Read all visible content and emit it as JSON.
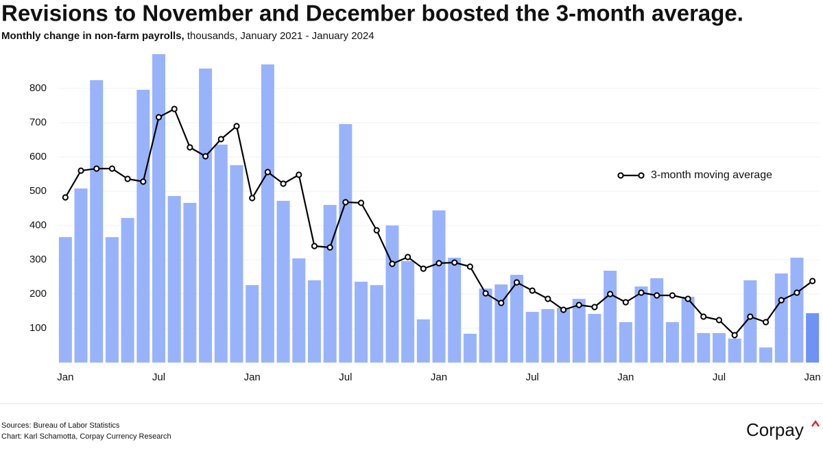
{
  "chart_data": {
    "type": "bar_line",
    "title": "Revisions to November and December boosted the 3-month average.",
    "subtitle_bold": "Monthly change in non-farm payrolls,",
    "subtitle": " thousands, January 2021 - January 2024",
    "categories": [
      "Jan",
      null,
      null,
      null,
      null,
      null,
      "Jul",
      null,
      null,
      null,
      null,
      null,
      "Jan",
      null,
      null,
      null,
      null,
      null,
      "Jul",
      null,
      null,
      null,
      null,
      null,
      "Jan",
      null,
      null,
      null,
      null,
      null,
      "Jul",
      null,
      null,
      null,
      null,
      null,
      "Jan",
      null,
      null,
      null,
      null,
      null,
      "Jul",
      null,
      null,
      null,
      null,
      null,
      "Jan"
    ],
    "series": [
      {
        "type": "bar",
        "color": "#99b3fb",
        "last_bar_color": "#6e93f4",
        "values": [
          366,
          508,
          824,
          366,
          422,
          796,
          900,
          486,
          466,
          858,
          636,
          576,
          226,
          870,
          472,
          304,
          240,
          460,
          696,
          236,
          226,
          400,
          296,
          126,
          444,
          306,
          84,
          216,
          228,
          256,
          148,
          156,
          160,
          186,
          142,
          268,
          118,
          222,
          246,
          118,
          192,
          86,
          86,
          70,
          240,
          44,
          260,
          306,
          144
        ]
      },
      {
        "type": "line",
        "name": "3-month moving average",
        "color": "#000000",
        "values": [
          482,
          560,
          566,
          566,
          536,
          528,
          716,
          740,
          628,
          602,
          652,
          690,
          480,
          556,
          522,
          548,
          340,
          336,
          468,
          466,
          386,
          288,
          308,
          274,
          290,
          292,
          280,
          202,
          174,
          234,
          210,
          186,
          154,
          168,
          162,
          200,
          176,
          204,
          196,
          196,
          186,
          134,
          124,
          80,
          134,
          118,
          182,
          204,
          238
        ]
      }
    ],
    "ylim": [
      0,
      900
    ],
    "yticks": [
      100,
      200,
      300,
      400,
      500,
      600,
      700,
      800
    ],
    "grid": true,
    "legend": "right",
    "sources": "Sources: Bureau of Labor Statistics",
    "credit": "Chart: Karl Schamotta, Corpay Currency Research",
    "logo": "Corpay"
  }
}
